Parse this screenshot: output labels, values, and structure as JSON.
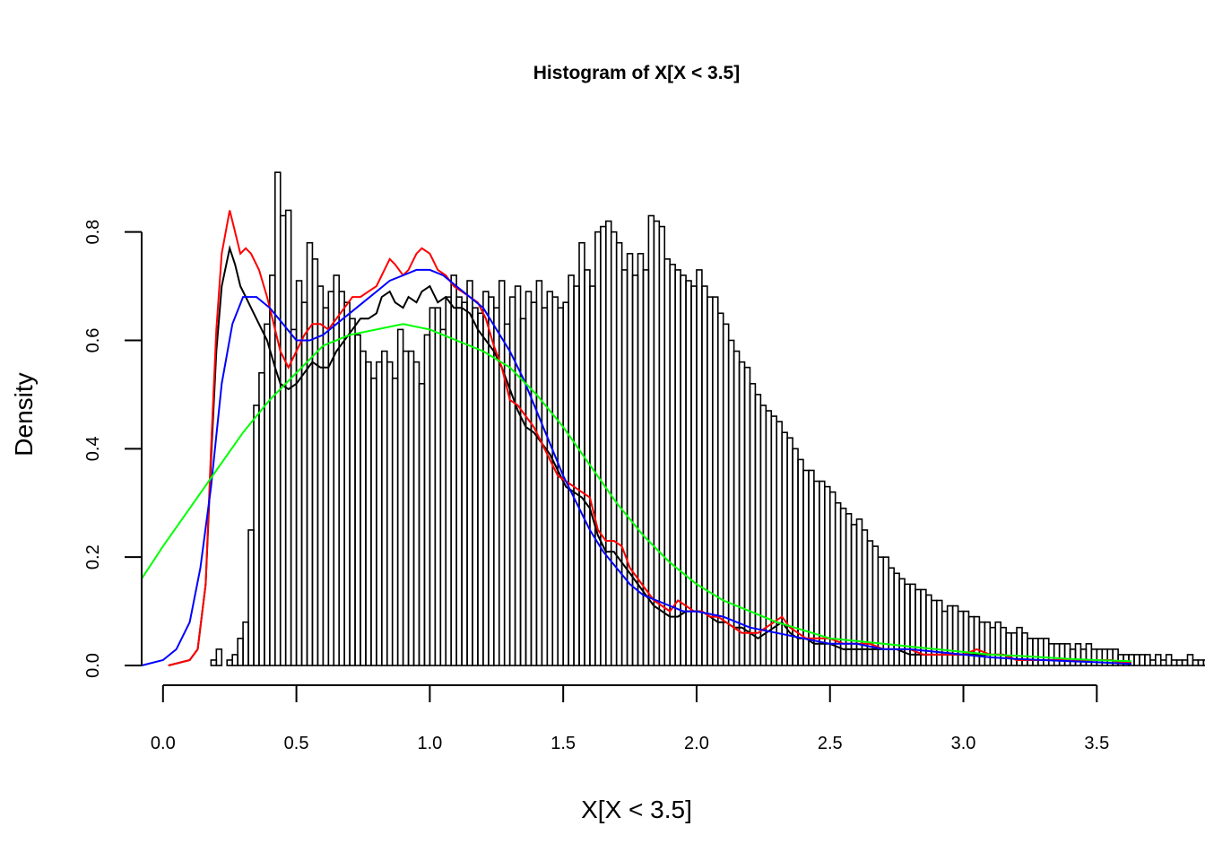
{
  "chart_data": {
    "type": "bar",
    "title": "Histogram of X[X < 3.5]",
    "xlabel": "X[X < 3.5]",
    "ylabel": "Density",
    "xlim": [
      -0.08,
      3.63
    ],
    "ylim": [
      0,
      0.95
    ],
    "x_ticks": [
      "0.0",
      "0.5",
      "1.0",
      "1.5",
      "2.0",
      "2.5",
      "3.0",
      "3.5"
    ],
    "y_ticks": [
      "0.0",
      "0.2",
      "0.4",
      "0.6",
      "0.8"
    ],
    "bins": {
      "start": 0.0,
      "width": 0.02,
      "values": [
        0.0,
        0.0,
        0.0,
        0.0,
        0.0,
        0.0,
        0.0,
        0.0,
        0.0,
        0.01,
        0.03,
        0.0,
        0.01,
        0.02,
        0.05,
        0.08,
        0.25,
        0.48,
        0.54,
        0.63,
        0.72,
        0.91,
        0.83,
        0.84,
        0.62,
        0.71,
        0.67,
        0.78,
        0.75,
        0.7,
        0.66,
        0.69,
        0.72,
        0.69,
        0.67,
        0.64,
        0.61,
        0.58,
        0.56,
        0.53,
        0.56,
        0.58,
        0.56,
        0.53,
        0.62,
        0.58,
        0.58,
        0.56,
        0.52,
        0.61,
        0.66,
        0.66,
        0.62,
        0.68,
        0.72,
        0.68,
        0.67,
        0.71,
        0.66,
        0.65,
        0.69,
        0.68,
        0.66,
        0.71,
        0.63,
        0.68,
        0.7,
        0.64,
        0.69,
        0.67,
        0.71,
        0.66,
        0.69,
        0.68,
        0.66,
        0.67,
        0.72,
        0.7,
        0.78,
        0.73,
        0.7,
        0.8,
        0.81,
        0.82,
        0.8,
        0.78,
        0.73,
        0.76,
        0.72,
        0.76,
        0.73,
        0.83,
        0.82,
        0.81,
        0.75,
        0.74,
        0.73,
        0.72,
        0.71,
        0.7,
        0.73,
        0.7,
        0.68,
        0.68,
        0.65,
        0.63,
        0.6,
        0.58,
        0.56,
        0.55,
        0.52,
        0.5,
        0.48,
        0.47,
        0.46,
        0.45,
        0.43,
        0.42,
        0.4,
        0.38,
        0.36,
        0.36,
        0.34,
        0.34,
        0.33,
        0.32,
        0.3,
        0.29,
        0.28,
        0.26,
        0.27,
        0.25,
        0.23,
        0.22,
        0.2,
        0.2,
        0.18,
        0.17,
        0.16,
        0.15,
        0.15,
        0.14,
        0.14,
        0.13,
        0.12,
        0.12,
        0.1,
        0.11,
        0.11,
        0.1,
        0.1,
        0.09,
        0.09,
        0.08,
        0.08,
        0.07,
        0.08,
        0.07,
        0.06,
        0.06,
        0.07,
        0.06,
        0.05,
        0.05,
        0.05,
        0.05,
        0.04,
        0.04,
        0.04,
        0.04,
        0.03,
        0.04,
        0.03,
        0.04,
        0.03,
        0.03,
        0.03,
        0.03,
        0.03,
        0.02,
        0.02,
        0.02,
        0.02,
        0.02,
        0.02,
        0.01,
        0.02,
        0.01,
        0.02,
        0.01,
        0.01,
        0.01,
        0.02,
        0.01,
        0.01,
        0.01,
        0.01,
        0.01,
        0.01,
        0.01,
        0.01,
        0.01,
        0.01,
        0.01,
        0.01,
        0.01,
        0.01
      ]
    },
    "series": [
      {
        "color": "#000000",
        "x": [
          0.02,
          0.06,
          0.1,
          0.13,
          0.16,
          0.18,
          0.2,
          0.22,
          0.25,
          0.27,
          0.29,
          0.31,
          0.33,
          0.36,
          0.39,
          0.42,
          0.44,
          0.47,
          0.5,
          0.53,
          0.56,
          0.59,
          0.62,
          0.65,
          0.68,
          0.71,
          0.74,
          0.77,
          0.8,
          0.82,
          0.85,
          0.87,
          0.9,
          0.92,
          0.95,
          0.97,
          1.0,
          1.03,
          1.06,
          1.09,
          1.12,
          1.15,
          1.18,
          1.21,
          1.24,
          1.27,
          1.3,
          1.33,
          1.36,
          1.39,
          1.42,
          1.45,
          1.48,
          1.51,
          1.54,
          1.57,
          1.6,
          1.63,
          1.66,
          1.69,
          1.72,
          1.75,
          1.78,
          1.81,
          1.84,
          1.87,
          1.9,
          1.93,
          1.96,
          1.99,
          2.02,
          2.05,
          2.08,
          2.11,
          2.14,
          2.17,
          2.2,
          2.23,
          2.26,
          2.29,
          2.32,
          2.35,
          2.38,
          2.41,
          2.44,
          2.47,
          2.5,
          2.55,
          2.6,
          2.65,
          2.7,
          2.75,
          2.8,
          2.85,
          2.9,
          2.95,
          3.0,
          3.05,
          3.1,
          3.15,
          3.2,
          3.25,
          3.3,
          3.35,
          3.4,
          3.45,
          3.5,
          3.55,
          3.6,
          3.63
        ],
        "y": [
          0.0,
          0.005,
          0.01,
          0.03,
          0.15,
          0.38,
          0.58,
          0.7,
          0.77,
          0.74,
          0.7,
          0.68,
          0.66,
          0.63,
          0.6,
          0.55,
          0.52,
          0.51,
          0.52,
          0.54,
          0.56,
          0.55,
          0.55,
          0.58,
          0.6,
          0.62,
          0.64,
          0.64,
          0.65,
          0.68,
          0.69,
          0.67,
          0.66,
          0.68,
          0.67,
          0.69,
          0.7,
          0.67,
          0.68,
          0.66,
          0.66,
          0.65,
          0.62,
          0.6,
          0.58,
          0.55,
          0.51,
          0.47,
          0.44,
          0.43,
          0.41,
          0.39,
          0.36,
          0.33,
          0.32,
          0.31,
          0.29,
          0.24,
          0.21,
          0.21,
          0.19,
          0.17,
          0.15,
          0.13,
          0.11,
          0.1,
          0.09,
          0.09,
          0.1,
          0.1,
          0.1,
          0.09,
          0.08,
          0.08,
          0.07,
          0.07,
          0.06,
          0.05,
          0.06,
          0.07,
          0.08,
          0.06,
          0.05,
          0.05,
          0.04,
          0.04,
          0.04,
          0.03,
          0.03,
          0.03,
          0.03,
          0.03,
          0.02,
          0.02,
          0.02,
          0.02,
          0.02,
          0.02,
          0.02,
          0.02,
          0.01,
          0.01,
          0.01,
          0.01,
          0.01,
          0.01,
          0.01,
          0.01,
          0.005,
          0.005
        ]
      },
      {
        "color": "#ff0000",
        "x": [
          0.02,
          0.06,
          0.1,
          0.13,
          0.16,
          0.18,
          0.2,
          0.22,
          0.25,
          0.27,
          0.29,
          0.31,
          0.33,
          0.36,
          0.39,
          0.42,
          0.44,
          0.47,
          0.5,
          0.53,
          0.56,
          0.59,
          0.62,
          0.65,
          0.68,
          0.71,
          0.74,
          0.77,
          0.8,
          0.82,
          0.85,
          0.87,
          0.9,
          0.92,
          0.95,
          0.97,
          1.0,
          1.03,
          1.06,
          1.09,
          1.12,
          1.15,
          1.18,
          1.21,
          1.24,
          1.27,
          1.3,
          1.33,
          1.36,
          1.39,
          1.42,
          1.45,
          1.48,
          1.51,
          1.54,
          1.57,
          1.6,
          1.63,
          1.66,
          1.69,
          1.72,
          1.75,
          1.78,
          1.81,
          1.84,
          1.87,
          1.9,
          1.93,
          1.96,
          1.99,
          2.02,
          2.05,
          2.08,
          2.11,
          2.14,
          2.17,
          2.2,
          2.23,
          2.26,
          2.29,
          2.32,
          2.35,
          2.38,
          2.41,
          2.44,
          2.47,
          2.5,
          2.55,
          2.6,
          2.65,
          2.7,
          2.75,
          2.8,
          2.85,
          2.9,
          2.95,
          3.0,
          3.05,
          3.1,
          3.15,
          3.2,
          3.25,
          3.3,
          3.35,
          3.4,
          3.45,
          3.5,
          3.55,
          3.6,
          3.63
        ],
        "y": [
          0.0,
          0.005,
          0.01,
          0.03,
          0.15,
          0.4,
          0.62,
          0.76,
          0.84,
          0.8,
          0.76,
          0.77,
          0.76,
          0.73,
          0.68,
          0.62,
          0.58,
          0.55,
          0.58,
          0.61,
          0.63,
          0.63,
          0.62,
          0.64,
          0.66,
          0.68,
          0.68,
          0.69,
          0.7,
          0.72,
          0.75,
          0.74,
          0.72,
          0.73,
          0.76,
          0.77,
          0.76,
          0.73,
          0.72,
          0.7,
          0.69,
          0.68,
          0.67,
          0.64,
          0.59,
          0.55,
          0.49,
          0.48,
          0.46,
          0.44,
          0.41,
          0.38,
          0.35,
          0.34,
          0.33,
          0.32,
          0.31,
          0.25,
          0.23,
          0.23,
          0.22,
          0.18,
          0.16,
          0.14,
          0.12,
          0.11,
          0.1,
          0.12,
          0.11,
          0.1,
          0.1,
          0.09,
          0.09,
          0.08,
          0.07,
          0.06,
          0.06,
          0.06,
          0.07,
          0.08,
          0.09,
          0.07,
          0.06,
          0.05,
          0.05,
          0.05,
          0.05,
          0.04,
          0.04,
          0.04,
          0.03,
          0.03,
          0.03,
          0.02,
          0.02,
          0.02,
          0.02,
          0.03,
          0.02,
          0.02,
          0.01,
          0.01,
          0.01,
          0.01,
          0.01,
          0.01,
          0.01,
          0.01,
          0.005,
          0.005
        ]
      },
      {
        "color": "#0000ff",
        "x": [
          -0.08,
          0.0,
          0.05,
          0.1,
          0.14,
          0.18,
          0.22,
          0.26,
          0.3,
          0.35,
          0.4,
          0.45,
          0.5,
          0.55,
          0.6,
          0.65,
          0.7,
          0.75,
          0.8,
          0.85,
          0.9,
          0.95,
          1.0,
          1.05,
          1.1,
          1.15,
          1.2,
          1.25,
          1.3,
          1.35,
          1.4,
          1.45,
          1.5,
          1.55,
          1.6,
          1.65,
          1.7,
          1.75,
          1.8,
          1.85,
          1.9,
          1.95,
          2.0,
          2.1,
          2.2,
          2.3,
          2.4,
          2.5,
          2.6,
          2.7,
          2.8,
          2.9,
          3.0,
          3.1,
          3.2,
          3.3,
          3.4,
          3.5,
          3.63
        ],
        "y": [
          0.0,
          0.01,
          0.03,
          0.08,
          0.18,
          0.33,
          0.52,
          0.63,
          0.68,
          0.68,
          0.66,
          0.63,
          0.6,
          0.6,
          0.61,
          0.63,
          0.65,
          0.67,
          0.69,
          0.71,
          0.72,
          0.73,
          0.73,
          0.72,
          0.7,
          0.68,
          0.66,
          0.62,
          0.58,
          0.53,
          0.47,
          0.41,
          0.35,
          0.3,
          0.25,
          0.21,
          0.18,
          0.15,
          0.13,
          0.12,
          0.11,
          0.1,
          0.1,
          0.09,
          0.07,
          0.06,
          0.05,
          0.04,
          0.04,
          0.03,
          0.03,
          0.025,
          0.02,
          0.015,
          0.012,
          0.01,
          0.008,
          0.006,
          0.003
        ]
      },
      {
        "color": "#00ff00",
        "x": [
          -0.08,
          0.0,
          0.1,
          0.2,
          0.3,
          0.4,
          0.5,
          0.6,
          0.7,
          0.8,
          0.9,
          1.0,
          1.1,
          1.2,
          1.3,
          1.4,
          1.5,
          1.6,
          1.7,
          1.8,
          1.9,
          2.0,
          2.1,
          2.2,
          2.3,
          2.4,
          2.5,
          2.6,
          2.7,
          2.8,
          2.9,
          3.0,
          3.1,
          3.2,
          3.3,
          3.4,
          3.5,
          3.63
        ],
        "y": [
          0.16,
          0.22,
          0.29,
          0.36,
          0.43,
          0.49,
          0.54,
          0.59,
          0.61,
          0.62,
          0.63,
          0.62,
          0.6,
          0.58,
          0.55,
          0.5,
          0.44,
          0.37,
          0.3,
          0.24,
          0.19,
          0.15,
          0.12,
          0.1,
          0.08,
          0.065,
          0.05,
          0.045,
          0.04,
          0.035,
          0.03,
          0.025,
          0.02,
          0.018,
          0.015,
          0.012,
          0.01,
          0.008
        ]
      }
    ]
  }
}
